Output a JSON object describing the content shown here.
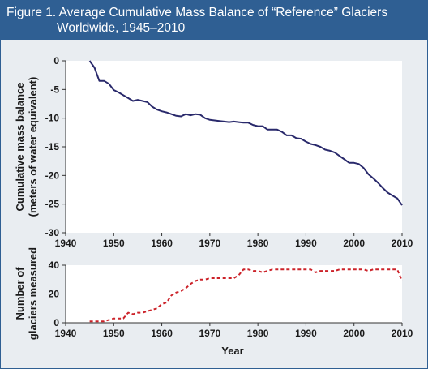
{
  "title": {
    "line1": "Figure 1. Average Cumulative Mass Balance of “Reference” Glaciers",
    "line2": "Worldwide, 1945–2010"
  },
  "colors": {
    "title_bar": "#2f5f93",
    "background": "#e9edf1",
    "plot_background": "#ffffff",
    "mass_line": "#29296b",
    "count_line": "#cc2229"
  },
  "chart_data": [
    {
      "type": "line",
      "ylabel_line1": "Cumulative mass balance",
      "ylabel_line2": "(meters of water equivalent)",
      "xlim": [
        1940,
        2010
      ],
      "ylim": [
        -30,
        0
      ],
      "x_ticks": [
        1940,
        1950,
        1960,
        1970,
        1980,
        1990,
        2000,
        2010
      ],
      "y_ticks": [
        0,
        -5,
        -10,
        -15,
        -20,
        -25,
        -30
      ],
      "grid": false,
      "series": [
        {
          "x": [
            1945,
            1946,
            1947,
            1948,
            1949,
            1950,
            1951,
            1952,
            1953,
            1954,
            1955,
            1956,
            1957,
            1958,
            1959,
            1960,
            1961,
            1962,
            1963,
            1964,
            1965,
            1966,
            1967,
            1968,
            1969,
            1970,
            1971,
            1972,
            1973,
            1974,
            1975,
            1976,
            1977,
            1978,
            1979,
            1980,
            1981,
            1982,
            1983,
            1984,
            1985,
            1986,
            1987,
            1988,
            1989,
            1990,
            1991,
            1992,
            1993,
            1994,
            1995,
            1996,
            1997,
            1998,
            1999,
            2000,
            2001,
            2002,
            2003,
            2004,
            2005,
            2006,
            2007,
            2008,
            2009,
            2010
          ],
          "y": [
            0,
            -1.2,
            -3.5,
            -3.5,
            -4,
            -5.1,
            -5.5,
            -6,
            -6.5,
            -7,
            -6.8,
            -7,
            -7.2,
            -8,
            -8.5,
            -8.8,
            -9,
            -9.3,
            -9.6,
            -9.7,
            -9.3,
            -9.5,
            -9.3,
            -9.4,
            -10,
            -10.3,
            -10.4,
            -10.5,
            -10.6,
            -10.7,
            -10.6,
            -10.7,
            -10.8,
            -10.8,
            -11.2,
            -11.4,
            -11.4,
            -12,
            -12,
            -12,
            -12.4,
            -13,
            -13,
            -13.5,
            -13.6,
            -14.1,
            -14.5,
            -14.7,
            -15,
            -15.5,
            -15.7,
            -16,
            -16.6,
            -17.2,
            -17.8,
            -17.8,
            -18,
            -18.7,
            -19.8,
            -20.5,
            -21.3,
            -22.2,
            -23,
            -23.5,
            -24,
            -25.2
          ]
        }
      ]
    },
    {
      "type": "line",
      "xlabel": "Year",
      "ylabel_line1": "Number of",
      "ylabel_line2": "glaciers measured",
      "xlim": [
        1940,
        2010
      ],
      "ylim": [
        0,
        40
      ],
      "x_ticks": [
        1940,
        1950,
        1960,
        1970,
        1980,
        1990,
        2000,
        2010
      ],
      "y_ticks": [
        0,
        20,
        40
      ],
      "grid": false,
      "series": [
        {
          "x": [
            1945,
            1946,
            1947,
            1948,
            1949,
            1950,
            1951,
            1952,
            1953,
            1954,
            1955,
            1956,
            1957,
            1958,
            1959,
            1960,
            1961,
            1962,
            1963,
            1964,
            1965,
            1966,
            1967,
            1968,
            1969,
            1970,
            1971,
            1972,
            1973,
            1974,
            1975,
            1976,
            1977,
            1978,
            1979,
            1980,
            1981,
            1982,
            1983,
            1984,
            1985,
            1986,
            1987,
            1988,
            1989,
            1990,
            1991,
            1992,
            1993,
            1994,
            1995,
            1996,
            1997,
            1998,
            1999,
            2000,
            2001,
            2002,
            2003,
            2004,
            2005,
            2006,
            2007,
            2008,
            2009,
            2010
          ],
          "y": [
            1,
            1,
            1,
            1,
            2,
            3,
            3,
            3,
            7,
            6,
            7,
            7,
            8,
            9,
            10,
            13,
            14,
            19,
            21,
            22,
            24,
            27,
            29,
            30,
            30,
            31,
            31,
            31,
            31,
            31,
            31,
            33,
            37,
            37,
            36,
            36,
            35,
            36,
            37,
            37,
            37,
            37,
            37,
            37,
            37,
            37,
            37,
            35,
            36,
            36,
            36,
            36,
            37,
            37,
            37,
            37,
            37,
            37,
            36,
            37,
            37,
            37,
            37,
            37,
            37,
            29
          ]
        }
      ]
    }
  ]
}
